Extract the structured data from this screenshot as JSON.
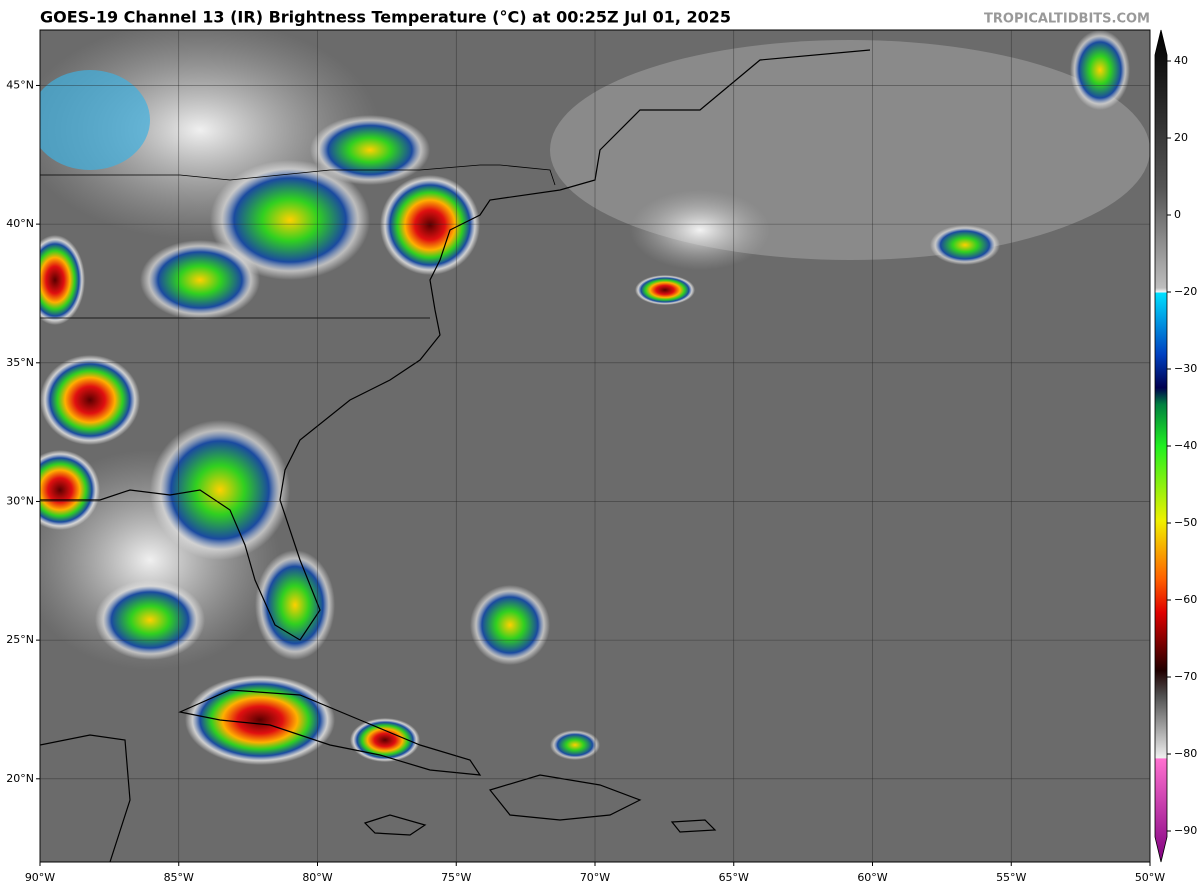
{
  "title": "GOES-19 Channel 13 (IR) Brightness Temperature (°C) at 00:25Z Jul 01, 2025",
  "credit": "TROPICALTIDBITS.COM",
  "map": {
    "xlim": [
      -90,
      -50
    ],
    "ylim": [
      17,
      47
    ],
    "grid": true,
    "xticks": [
      {
        "value": -90,
        "label": "90°W"
      },
      {
        "value": -85,
        "label": "85°W"
      },
      {
        "value": -80,
        "label": "80°W"
      },
      {
        "value": -75,
        "label": "75°W"
      },
      {
        "value": -70,
        "label": "70°W"
      },
      {
        "value": -65,
        "label": "65°W"
      },
      {
        "value": -60,
        "label": "60°W"
      },
      {
        "value": -55,
        "label": "55°W"
      },
      {
        "value": -50,
        "label": "50°W"
      }
    ],
    "yticks": [
      {
        "value": 20,
        "label": "20°N"
      },
      {
        "value": 25,
        "label": "25°N"
      },
      {
        "value": 30,
        "label": "30°N"
      },
      {
        "value": 35,
        "label": "35°N"
      },
      {
        "value": 40,
        "label": "40°N"
      },
      {
        "value": 45,
        "label": "45°N"
      }
    ]
  },
  "colorbar": {
    "ticks": [
      40,
      20,
      0,
      {
        "value": -20,
        "label": "−20"
      },
      {
        "value": -30,
        "label": "−30"
      },
      {
        "value": -40,
        "label": "−40"
      },
      {
        "value": -50,
        "label": "−50"
      },
      {
        "value": -60,
        "label": "−60"
      },
      {
        "value": -70,
        "label": "−70"
      },
      {
        "value": -80,
        "label": "−80"
      },
      {
        "value": -90,
        "label": "−90"
      }
    ]
  }
}
